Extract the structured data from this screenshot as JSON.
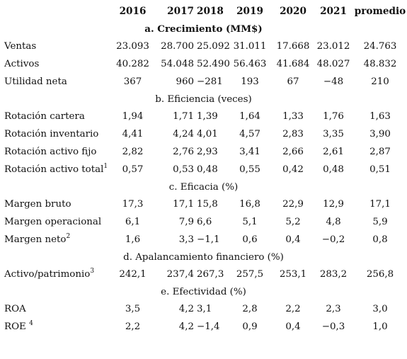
{
  "headers": [
    "",
    "2016",
    "2017",
    "2018",
    "2019",
    "2020",
    "2021",
    "promedio"
  ],
  "sections": [
    {
      "title": "a. Crecimiento (MM$)",
      "bold": true,
      "rows": [
        {
          "label": "Ventas",
          "sup": "",
          "values": [
            "23.093",
            "28.700",
            "25.092",
            "31.011",
            "17.668",
            "23.012",
            "24.763"
          ]
        },
        {
          "label": "Activos",
          "sup": "",
          "values": [
            "40.282",
            "54.048",
            "52.490",
            "56.463",
            "41.684",
            "48.027",
            "48.832"
          ]
        },
        {
          "label": "Utilidad neta",
          "sup": "",
          "values": [
            "367",
            "960",
            "−281",
            "193",
            "67",
            "−48",
            "210"
          ]
        }
      ]
    },
    {
      "title": "b. Eficiencia (veces)",
      "bold": false,
      "rows": [
        {
          "label": "Rotación cartera",
          "sup": "",
          "values": [
            "1,94",
            "1,71",
            "1,39",
            "1,64",
            "1,33",
            "1,76",
            "1,63"
          ]
        },
        {
          "label": "Rotación inventario",
          "sup": "",
          "values": [
            "4,41",
            "4,24",
            "4,01",
            "4,57",
            "2,83",
            "3,35",
            "3,90"
          ]
        },
        {
          "label": "Rotación activo fijo",
          "sup": "",
          "values": [
            "2,82",
            "2,76",
            "2,93",
            "3,41",
            "2,66",
            "2,61",
            "2,87"
          ]
        },
        {
          "label": "Rotación activo total",
          "sup": "1",
          "values": [
            "0,57",
            "0,53",
            "0,48",
            "0,55",
            "0,42",
            "0,48",
            "0,51"
          ]
        }
      ]
    },
    {
      "title": "c. Eficacia (%)",
      "bold": false,
      "rows": [
        {
          "label": "Margen bruto",
          "sup": "",
          "values": [
            "17,3",
            "17,1",
            "15,8",
            "16,8",
            "22,9",
            "12,9",
            "17,1"
          ]
        },
        {
          "label": "Margen operacional",
          "sup": "",
          "values": [
            "6,1",
            "7,9",
            "6,6",
            "5,1",
            "5,2",
            "4,8",
            "5,9"
          ]
        },
        {
          "label": "Margen neto",
          "sup": "2",
          "values": [
            "1,6",
            "3,3",
            "−1,1",
            "0,6",
            "0,4",
            "−0,2",
            "0,8"
          ]
        }
      ]
    },
    {
      "title": "d. Apalancamiento financiero (%)",
      "bold": false,
      "rows": [
        {
          "label": "Activo/patrimonio",
          "sup": "3",
          "values": [
            "242,1",
            "237,4",
            "267,3",
            "257,5",
            "253,1",
            "283,2",
            "256,8"
          ]
        }
      ]
    },
    {
      "title": "e. Efectividad (%)",
      "bold": false,
      "rows": [
        {
          "label": "ROA",
          "sup": "",
          "values": [
            "3,5",
            "4,2",
            "3,1",
            "2,8",
            "2,2",
            "2,3",
            "3,0"
          ]
        },
        {
          "label": "ROE ",
          "sup": "4",
          "values": [
            "2,2",
            "4,2",
            "−1,4",
            "0,9",
            "0,4",
            "−0,3",
            "1,0"
          ]
        }
      ]
    }
  ]
}
